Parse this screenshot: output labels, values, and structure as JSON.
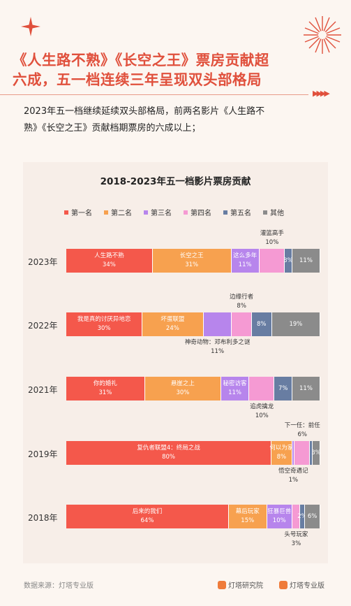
{
  "header": {
    "title_line1": "《人生路不熟》《长空之王》票房贡献超",
    "title_line2": "六成，五一档连续三年呈现双头部格局",
    "subtitle_line1": "2023年五一档继续延续双头部格局，前两名影片《人生路不",
    "subtitle_line2": "熟》《长空之王》贡献档期票房的六成以上；"
  },
  "colors": {
    "rank1": "#f4584b",
    "rank2": "#f7a14f",
    "rank3": "#b785ec",
    "rank4": "#f59ad3",
    "rank5": "#687da2",
    "other": "#8b8b8b",
    "accent": "#e0503c"
  },
  "chart_data": {
    "type": "bar",
    "orientation": "horizontal-stacked-100",
    "title": "2018-2023年五一档影片票房贡献",
    "legend": [
      "第一名",
      "第二名",
      "第三名",
      "第四名",
      "第五名",
      "其他"
    ],
    "legend_position": "top",
    "categories": [
      "2023年",
      "2022年",
      "2021年",
      "2019年",
      "2018年"
    ],
    "series": [
      {
        "name": "第一名",
        "values": [
          34,
          30,
          31,
          80,
          64
        ]
      },
      {
        "name": "第二名",
        "values": [
          31,
          24,
          30,
          8,
          15
        ]
      },
      {
        "name": "第三名",
        "values": [
          11,
          11,
          11,
          1,
          10
        ]
      },
      {
        "name": "第四名",
        "values": [
          10,
          8,
          10,
          6,
          3
        ]
      },
      {
        "name": "第五名",
        "values": [
          3,
          8,
          7,
          1,
          2
        ]
      },
      {
        "name": "其他",
        "values": [
          11,
          19,
          11,
          3,
          6
        ]
      }
    ],
    "films": [
      [
        "人生路不熟",
        "长空之王",
        "这么多年",
        "灌篮高手",
        "",
        ""
      ],
      [
        "我是真的讨厌异地恋",
        "坏蛋联盟",
        "神奇动物：邓布利多之谜",
        "边缘行者",
        "",
        ""
      ],
      [
        "你的婚礼",
        "悬崖之上",
        "秘密访客",
        "追虎擒龙",
        "",
        ""
      ],
      [
        "复仇者联盟4：终局之战",
        "何以为家",
        "悟空奇遇记",
        "下一任：前任",
        "",
        ""
      ],
      [
        "后来的我们",
        "幕后玩家",
        "狂暴巨兽",
        "头号玩家",
        "",
        ""
      ]
    ],
    "value_labels": [
      [
        "34%",
        "31%",
        "11%",
        "10%",
        "3%",
        "11%"
      ],
      [
        "30%",
        "24%",
        "11%",
        "8%",
        "8%",
        "19%"
      ],
      [
        "31%",
        "30%",
        "11%",
        "10%",
        "7%",
        "11%"
      ],
      [
        "80%",
        "8%",
        "1%",
        "6%",
        "1%",
        "3%"
      ],
      [
        "64%",
        "15%",
        "10%",
        "3%",
        "2%",
        "6%"
      ]
    ],
    "xlim": [
      0,
      100
    ],
    "grid": false
  },
  "footer": {
    "source": "数据来源：灯塔专业版",
    "brand1": "灯塔研究院",
    "brand2": "灯塔专业版"
  }
}
